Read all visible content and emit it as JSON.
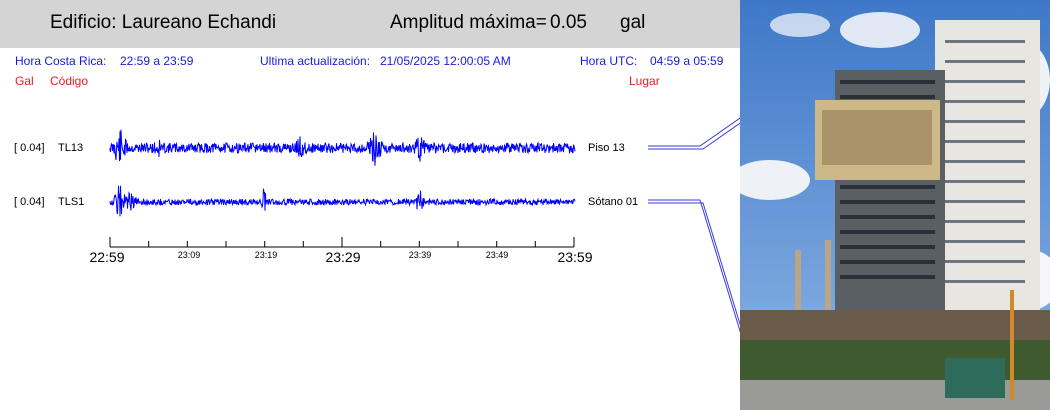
{
  "header": {
    "building_label": "Edificio: Laureano Echandi",
    "amplitude_label": "Amplitud máxima=",
    "amplitude_value": "0.05",
    "amplitude_unit": "gal"
  },
  "info": {
    "local_time_label": "Hora Costa Rica:",
    "local_time_range": "22:59 a 23:59",
    "update_label": "Ultima actualización:",
    "update_value": "21/05/2025 12:00:05 AM",
    "utc_label": "Hora UTC:",
    "utc_range": "04:59 a 05:59"
  },
  "columns": {
    "gal": "Gal",
    "code": "Código",
    "place": "Lugar"
  },
  "channels": [
    {
      "scale": "[   0.04]",
      "code": "TL13",
      "place": "Piso 13",
      "color": "#0000ff"
    },
    {
      "scale": "[   0.04]",
      "code": "TLS1",
      "place": "Sótano 01",
      "color": "#0000ff"
    }
  ],
  "time_axis": {
    "major_labels": [
      "22:59",
      "23:29",
      "23:59"
    ],
    "minor_labels": [
      "23:09",
      "23:19",
      "23:39",
      "23:49"
    ]
  },
  "photo": {
    "subject": "building-photo",
    "sky": "#5b8fd6"
  }
}
